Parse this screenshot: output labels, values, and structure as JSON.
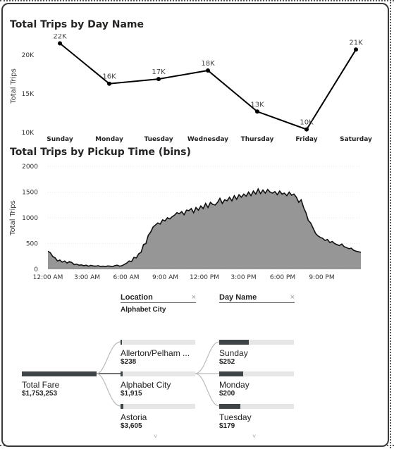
{
  "line_chart": {
    "title": "Total Trips by Day Name",
    "chart_data": {
      "type": "line",
      "categories": [
        "Sunday",
        "Monday",
        "Tuesday",
        "Wednesday",
        "Thursday",
        "Friday",
        "Saturday"
      ],
      "values": [
        21500,
        16300,
        16900,
        18000,
        12700,
        10400,
        20700
      ],
      "data_labels": [
        "22K",
        "16K",
        "17K",
        "18K",
        "13K",
        "10K",
        "21K"
      ],
      "ylabel": "Total Trips",
      "yticks": [
        "10K",
        "15K",
        "20K"
      ],
      "ytick_values": [
        10000,
        15000,
        20000
      ],
      "ylim": [
        10000,
        22000
      ],
      "color": "#000000"
    }
  },
  "area_chart": {
    "title": "Total Trips by Pickup Time (bins)",
    "chart_data": {
      "type": "area",
      "ylabel": "Total Trips",
      "yticks": [
        "0",
        "500",
        "1000",
        "1500",
        "2000"
      ],
      "ytick_values": [
        0,
        500,
        1000,
        1500,
        2000
      ],
      "ylim": [
        0,
        2000
      ],
      "xticks": [
        "12:00 AM",
        "3:00 AM",
        "6:00 AM",
        "9:00 AM",
        "12:00 PM",
        "3:00 PM",
        "6:00 PM",
        "9:00 PM"
      ],
      "xtick_hours": [
        0,
        3,
        6,
        9,
        12,
        15,
        18,
        21
      ],
      "x_range_hours": [
        0,
        24
      ],
      "values": [
        350,
        320,
        250,
        220,
        160,
        180,
        140,
        160,
        120,
        150,
        130,
        90,
        100,
        80,
        85,
        70,
        80,
        60,
        75,
        65,
        60,
        70,
        55,
        60,
        50,
        65,
        60,
        50,
        70,
        80,
        60,
        70,
        95,
        120,
        160,
        150,
        230,
        220,
        300,
        330,
        480,
        500,
        660,
        720,
        820,
        860,
        900,
        880,
        960,
        940,
        1000,
        980,
        1020,
        1050,
        1100,
        1080,
        1120,
        1060,
        1150,
        1140,
        1180,
        1100,
        1200,
        1150,
        1230,
        1180,
        1280,
        1200,
        1300,
        1260,
        1250,
        1300,
        1380,
        1280,
        1350,
        1330,
        1400,
        1330,
        1430,
        1360,
        1450,
        1400,
        1460,
        1420,
        1500,
        1430,
        1520,
        1460,
        1560,
        1470,
        1540,
        1480,
        1550,
        1500,
        1480,
        1510,
        1450,
        1520,
        1460,
        1480,
        1430,
        1500,
        1440,
        1460,
        1400,
        1300,
        1350,
        1200,
        1100,
        950,
        900,
        800,
        700,
        650,
        620,
        600,
        560,
        580,
        520,
        540,
        500,
        480,
        460,
        490,
        440,
        420,
        400,
        410,
        370,
        350,
        340,
        330
      ],
      "color": "#969696"
    }
  },
  "slicers": [
    {
      "label": "Location",
      "value": "Alphabet City",
      "clear": "×"
    },
    {
      "label": "Day Name",
      "value": "",
      "clear": "×"
    }
  ],
  "decomp_tree": {
    "root": {
      "label": "Total Fare",
      "amount": "$1,753,253",
      "fraction": 1.0
    },
    "level1": [
      {
        "label": "Allerton/Pelham ...",
        "amount": "$238",
        "fraction": 0.01
      },
      {
        "label": "Alphabet City",
        "amount": "$1,915",
        "fraction": 0.02,
        "selected": true
      },
      {
        "label": "Astoria",
        "amount": "$3,605",
        "fraction": 0.04
      }
    ],
    "level2": [
      {
        "label": "Sunday",
        "amount": "$252",
        "fraction": 0.4
      },
      {
        "label": "Monday",
        "amount": "$200",
        "fraction": 0.32
      },
      {
        "label": "Tuesday",
        "amount": "$179",
        "fraction": 0.28
      }
    ]
  }
}
